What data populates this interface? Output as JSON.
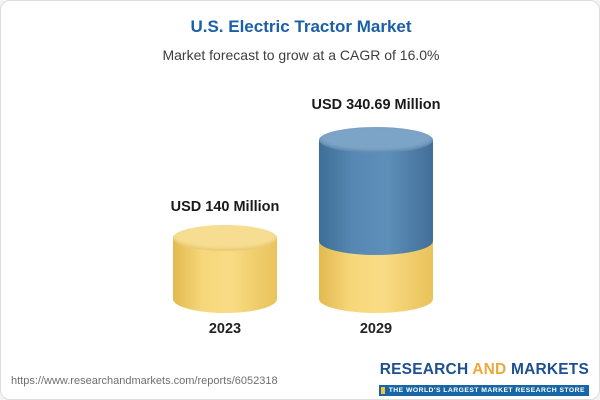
{
  "header": {
    "title": "U.S. Electric Tractor Market",
    "subtitle": "Market forecast to grow at a CAGR of 16.0%"
  },
  "chart_data": {
    "type": "bar",
    "style": "cylinder-3d",
    "categories": [
      "2023",
      "2029"
    ],
    "values": [
      140,
      340.69
    ],
    "unit": "USD Million",
    "bar_labels": [
      "USD 140 Million",
      "USD 340.69 Million"
    ],
    "title": "U.S. Electric Tractor Market",
    "subtitle": "Market forecast to grow at a CAGR of 16.0%",
    "cagr": "16.0%",
    "ylim": [
      0,
      360
    ],
    "legend": "none",
    "grid": false,
    "colors": {
      "bar_2023": "#F2CD62",
      "bar_2029_base": "#F2CD62",
      "bar_2029_top": "#4E81AD",
      "title_text": "#1B5FA8"
    }
  },
  "footer": {
    "url": "https://www.researchandmarkets.com/reports/6052318",
    "logo": {
      "research": "RESEARCH ",
      "and": "AND",
      "markets": " MARKETS",
      "tagline": "THE WORLD'S LARGEST MARKET RESEARCH STORE"
    }
  }
}
